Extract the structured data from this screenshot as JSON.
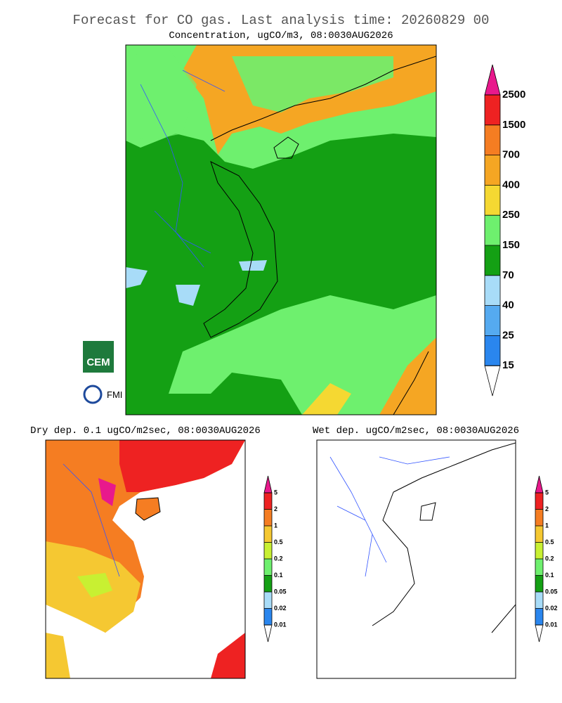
{
  "header": {
    "title": "Forecast for CO gas. Last analysis time: 20260829 00"
  },
  "panels": [
    {
      "title": "Concentration, ugCO/m3, 08:0030AUG2026",
      "colorbar": {
        "levels": [
          2500,
          1500,
          700,
          400,
          250,
          150,
          70,
          40,
          25,
          15
        ],
        "colors": [
          "#ee2222",
          "#f57d22",
          "#f5a623",
          "#f5d832",
          "#6ef06e",
          "#14a014",
          "#a8dcf8",
          "#55aaf0",
          "#2a86ee"
        ],
        "over_color": "#e8198c",
        "under_color": "#ffffff"
      }
    },
    {
      "title": "Dry dep. 0.1 ugCO/m2sec, 08:0030AUG2026",
      "colorbar": {
        "levels": [
          5,
          2,
          1,
          0.5,
          0.2,
          0.1,
          0.05,
          0.02,
          0.01
        ],
        "colors": [
          "#ee2222",
          "#f57d22",
          "#f5c832",
          "#c8f032",
          "#6ef06e",
          "#14a014",
          "#a8dcf8",
          "#2a86ee"
        ],
        "over_color": "#e8198c",
        "under_color": "#ffffff"
      }
    },
    {
      "title": "Wet dep. ugCO/m2sec, 08:0030AUG2026",
      "colorbar": {
        "levels": [
          5,
          2,
          1,
          0.5,
          0.2,
          0.1,
          0.05,
          0.02,
          0.01
        ],
        "colors": [
          "#ee2222",
          "#f57d22",
          "#f5c832",
          "#c8f032",
          "#6ef06e",
          "#14a014",
          "#a8dcf8",
          "#2a86ee"
        ],
        "over_color": "#e8198c",
        "under_color": "#ffffff"
      }
    }
  ],
  "logos": [
    "CEM",
    "FMI"
  ]
}
